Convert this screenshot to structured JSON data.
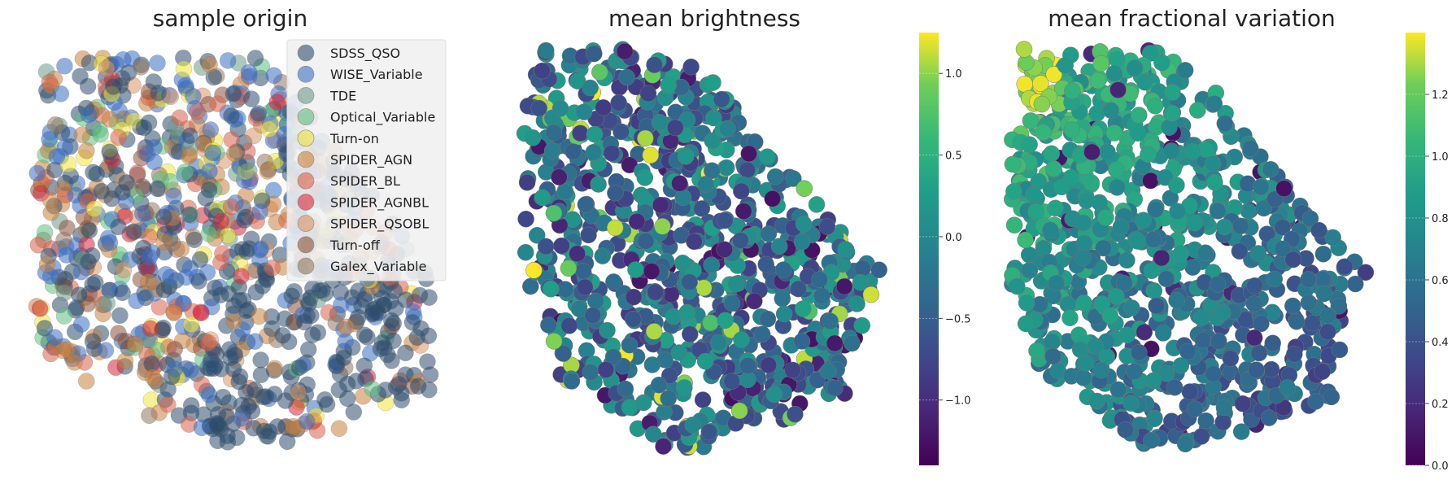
{
  "chart_data": [
    {
      "type": "scatter",
      "title": "sample origin",
      "legend_position": "top-right",
      "legend": [
        {
          "name": "SDSS_QSO",
          "color": "#2e4c6d"
        },
        {
          "name": "WISE_Variable",
          "color": "#3b6ec3"
        },
        {
          "name": "TDE",
          "color": "#6e9a8a"
        },
        {
          "name": "Optical_Variable",
          "color": "#5fbf80"
        },
        {
          "name": "Turn-on",
          "color": "#f0e63a"
        },
        {
          "name": "SPIDER_AGN",
          "color": "#c8823e"
        },
        {
          "name": "SPIDER_BL",
          "color": "#d8614a"
        },
        {
          "name": "SPIDER_AGNBL",
          "color": "#d6273c"
        },
        {
          "name": "SPIDER_QSOBL",
          "color": "#d89466"
        },
        {
          "name": "Turn-off",
          "color": "#8a5238"
        },
        {
          "name": "Galex_Variable",
          "color": "#93775e"
        }
      ],
      "axes_visible": false
    },
    {
      "type": "scatter",
      "title": "mean brightness",
      "colormap": "viridis",
      "colorbar": {
        "min": -1.4,
        "max": 1.25,
        "ticks": [
          "1.0",
          "0.5",
          "0.0",
          "−0.5",
          "−1.0"
        ],
        "tick_values": [
          1.0,
          0.5,
          0.0,
          -0.5,
          -1.0
        ]
      },
      "axes_visible": false
    },
    {
      "type": "scatter",
      "title": "mean fractional variation",
      "colormap": "viridis",
      "colorbar": {
        "min": 0.0,
        "max": 1.4,
        "ticks": [
          "1.2",
          "1.0",
          "0.8",
          "0.6",
          "0.4",
          "0.2",
          "0.0"
        ],
        "tick_values": [
          1.2,
          1.0,
          0.8,
          0.6,
          0.4,
          0.2,
          0.0
        ]
      },
      "axes_visible": false
    }
  ]
}
